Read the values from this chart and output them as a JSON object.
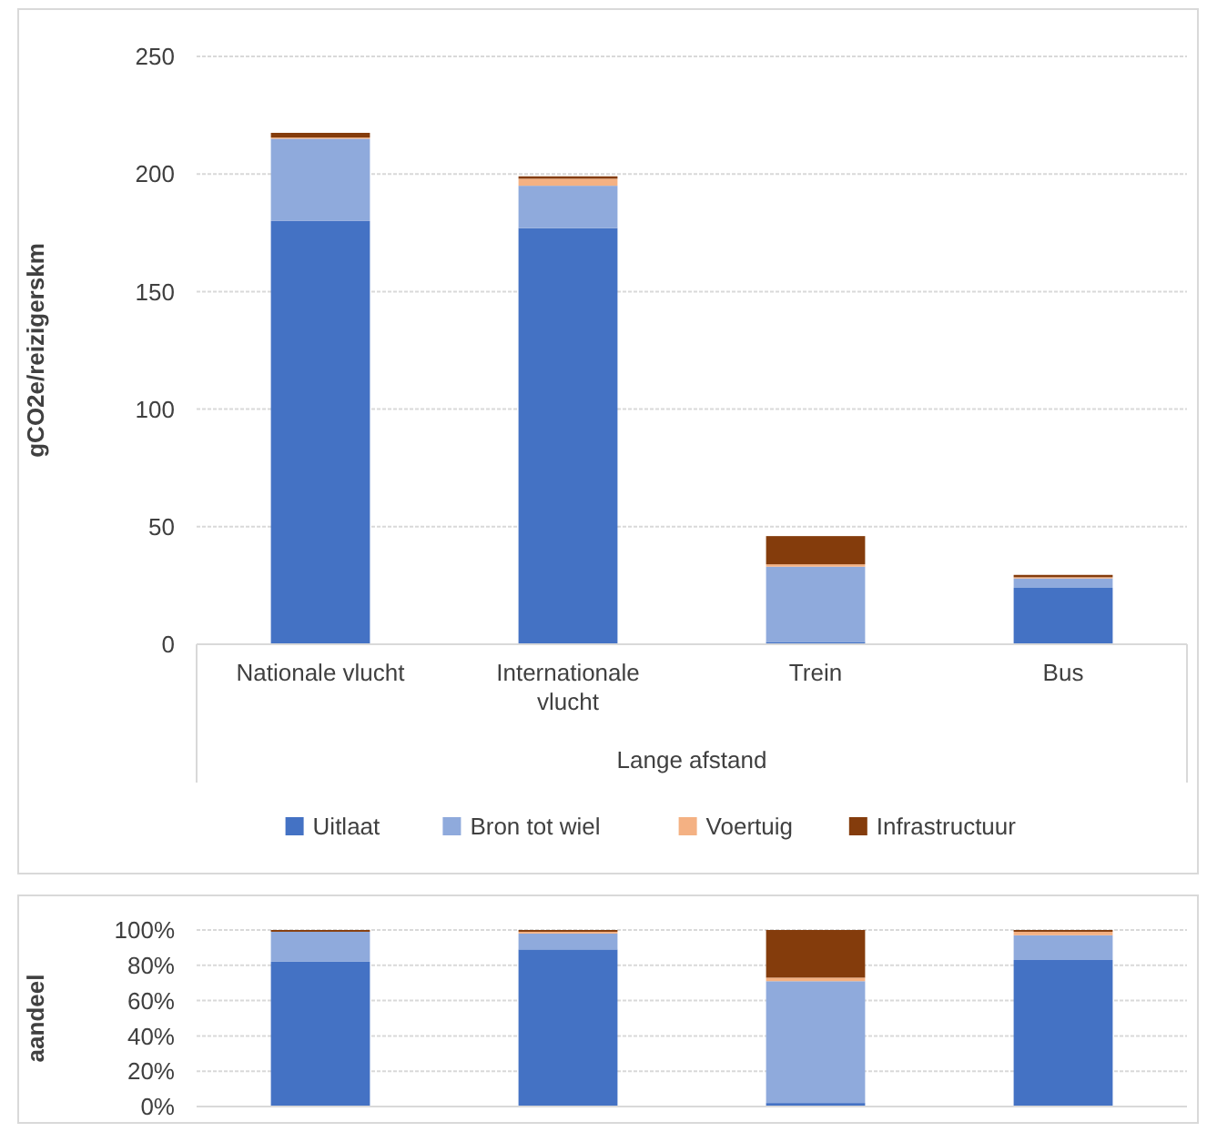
{
  "chart_data": [
    {
      "type": "bar",
      "stacked": true,
      "xlabel": "Lange afstand",
      "ylabel": "gCO2e/reizigerskm",
      "categories": [
        "Nationale vlucht",
        "Internationale vlucht",
        "Trein",
        "Bus"
      ],
      "series": [
        {
          "name": "Uitlaat",
          "color": "#4472c4",
          "values": [
            180,
            177,
            1,
            24
          ]
        },
        {
          "name": "Bron tot wiel",
          "color": "#8faadc",
          "values": [
            35,
            18,
            32,
            4
          ]
        },
        {
          "name": "Voertuig",
          "color": "#f4b183",
          "values": [
            0.5,
            3,
            1,
            0.5
          ]
        },
        {
          "name": "Infrastructuur",
          "color": "#843c0c",
          "values": [
            2,
            1,
            12,
            1
          ]
        }
      ],
      "ylim": [
        0,
        250
      ],
      "yticks": [
        0,
        50,
        100,
        150,
        200,
        250
      ],
      "grid": "y",
      "legend": "bottom"
    },
    {
      "type": "bar",
      "stacked": true,
      "ylabel": "aandeel",
      "categories": [
        null,
        null,
        null,
        null
      ],
      "series": [
        {
          "color": "#4472c4",
          "values": [
            82,
            89,
            2,
            83
          ]
        },
        {
          "color": "#8faadc",
          "values": [
            17,
            9,
            69,
            14
          ]
        },
        {
          "color": "#f4b183",
          "values": [
            0,
            1,
            2,
            2
          ]
        },
        {
          "color": "#843c0c",
          "values": [
            1,
            1,
            27,
            1
          ]
        }
      ],
      "ylim": [
        0,
        100
      ],
      "yticks": [
        {
          "value": 0,
          "label": "0%"
        },
        {
          "value": 20,
          "label": "20%"
        },
        {
          "value": 40,
          "label": "40%"
        },
        {
          "value": 60,
          "label": "60%"
        },
        {
          "value": 80,
          "label": "80%"
        },
        {
          "value": 100,
          "label": "100%"
        }
      ],
      "grid": "y",
      "tick_labels": "y"
    }
  ]
}
